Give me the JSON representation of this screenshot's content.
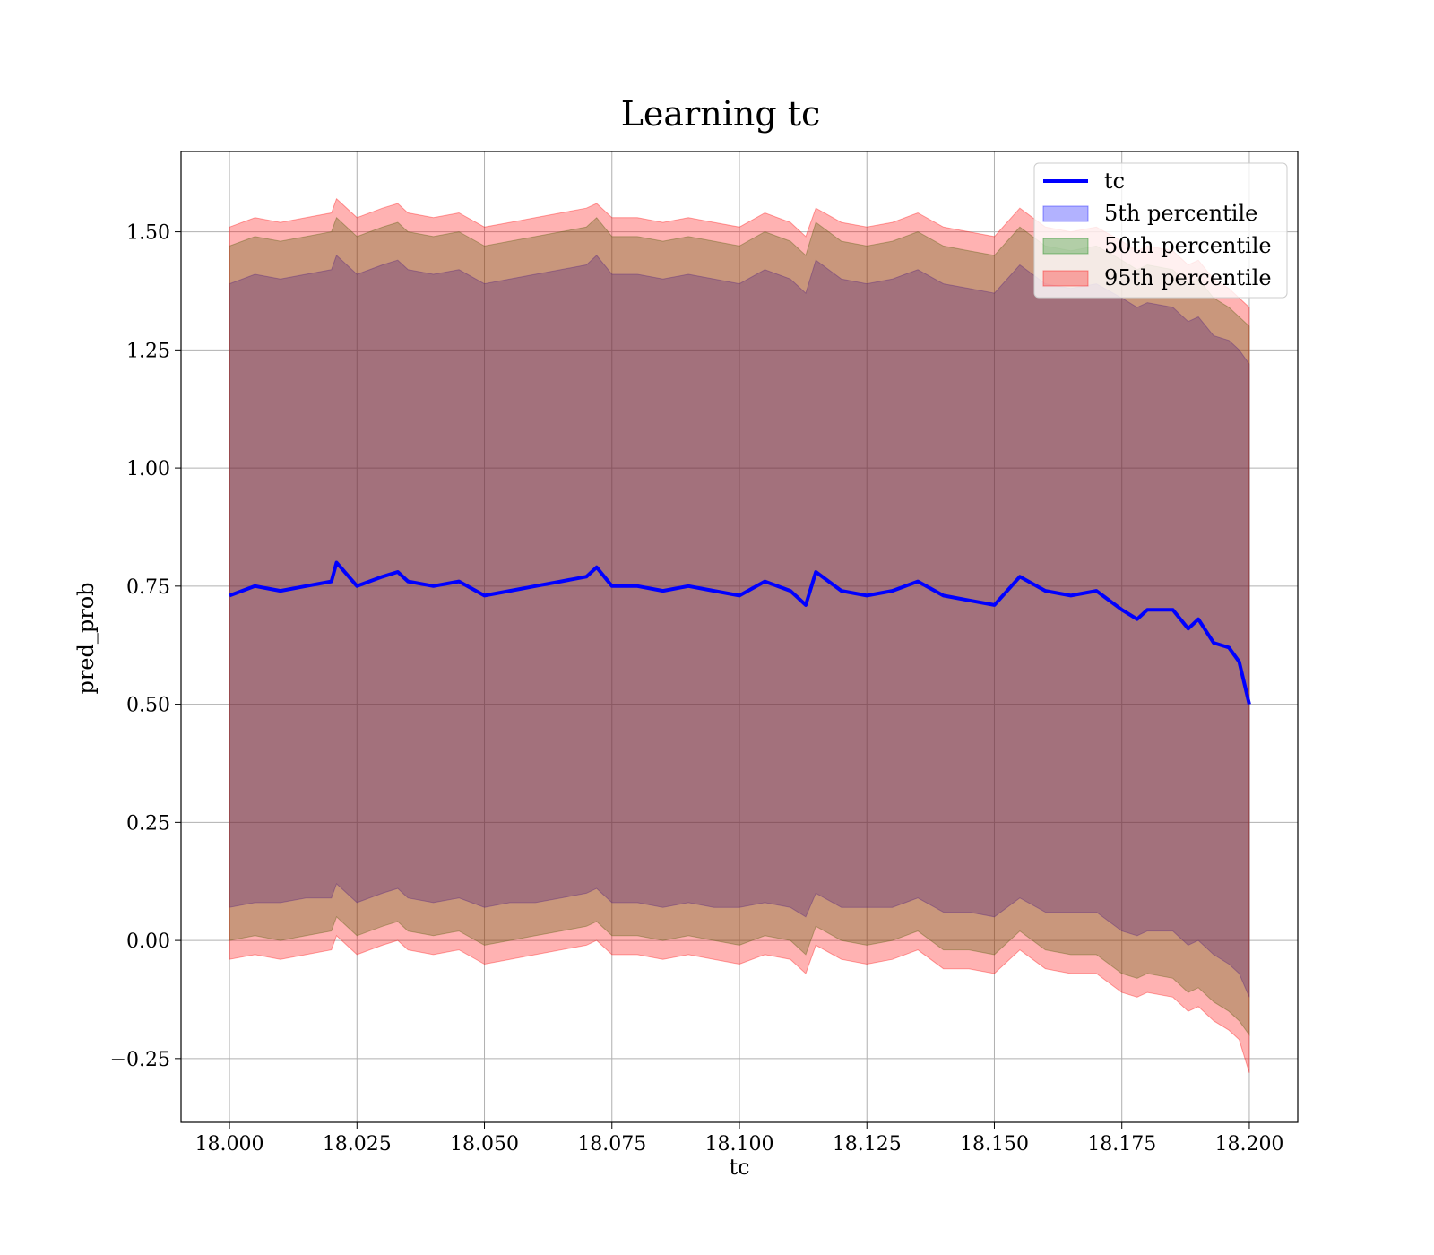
{
  "chart_data": {
    "type": "line",
    "title": "Learning tc",
    "xlabel": "tc",
    "ylabel": "pred_prob",
    "xlim": [
      17.9905,
      18.2095
    ],
    "ylim": [
      -0.385,
      1.67
    ],
    "xticks": [
      18.0,
      18.025,
      18.05,
      18.075,
      18.1,
      18.125,
      18.15,
      18.175,
      18.2
    ],
    "xtick_labels": [
      "18.000",
      "18.025",
      "18.050",
      "18.075",
      "18.100",
      "18.125",
      "18.150",
      "18.175",
      "18.200"
    ],
    "yticks": [
      -0.25,
      0.0,
      0.25,
      0.5,
      0.75,
      1.0,
      1.25,
      1.5
    ],
    "ytick_labels": [
      "−0.25",
      "0.00",
      "0.25",
      "0.50",
      "0.75",
      "1.00",
      "1.25",
      "1.50"
    ],
    "grid": true,
    "legend_position": "top-right",
    "x": [
      18.0,
      18.005,
      18.01,
      18.015,
      18.02,
      18.021,
      18.025,
      18.03,
      18.033,
      18.035,
      18.04,
      18.045,
      18.05,
      18.055,
      18.06,
      18.065,
      18.07,
      18.072,
      18.075,
      18.08,
      18.085,
      18.09,
      18.095,
      18.1,
      18.105,
      18.11,
      18.113,
      18.115,
      18.12,
      18.125,
      18.13,
      18.135,
      18.14,
      18.145,
      18.15,
      18.155,
      18.16,
      18.165,
      18.17,
      18.175,
      18.178,
      18.18,
      18.185,
      18.188,
      18.19,
      18.193,
      18.196,
      18.198,
      18.2
    ],
    "series": [
      {
        "name": "tc",
        "type": "line",
        "color": "#0000ff",
        "values": [
          0.73,
          0.75,
          0.74,
          0.75,
          0.76,
          0.8,
          0.75,
          0.77,
          0.78,
          0.76,
          0.75,
          0.76,
          0.73,
          0.74,
          0.75,
          0.76,
          0.77,
          0.79,
          0.75,
          0.75,
          0.74,
          0.75,
          0.74,
          0.73,
          0.76,
          0.74,
          0.71,
          0.78,
          0.74,
          0.73,
          0.74,
          0.76,
          0.73,
          0.72,
          0.71,
          0.77,
          0.74,
          0.73,
          0.74,
          0.7,
          0.68,
          0.7,
          0.7,
          0.66,
          0.68,
          0.63,
          0.62,
          0.59,
          0.5
        ]
      },
      {
        "name": "5th percentile",
        "type": "band",
        "color": "#0000ff",
        "lower": [
          0.07,
          0.08,
          0.08,
          0.09,
          0.09,
          0.12,
          0.08,
          0.1,
          0.11,
          0.09,
          0.08,
          0.09,
          0.07,
          0.08,
          0.08,
          0.09,
          0.1,
          0.11,
          0.08,
          0.08,
          0.07,
          0.08,
          0.07,
          0.07,
          0.08,
          0.07,
          0.05,
          0.1,
          0.07,
          0.07,
          0.07,
          0.09,
          0.06,
          0.06,
          0.05,
          0.09,
          0.06,
          0.06,
          0.06,
          0.02,
          0.01,
          0.02,
          0.02,
          -0.01,
          0.0,
          -0.03,
          -0.05,
          -0.07,
          -0.12
        ],
        "upper": [
          1.39,
          1.41,
          1.4,
          1.41,
          1.42,
          1.45,
          1.41,
          1.43,
          1.44,
          1.42,
          1.41,
          1.42,
          1.39,
          1.4,
          1.41,
          1.42,
          1.43,
          1.45,
          1.41,
          1.41,
          1.4,
          1.41,
          1.4,
          1.39,
          1.42,
          1.4,
          1.37,
          1.44,
          1.4,
          1.39,
          1.4,
          1.42,
          1.39,
          1.38,
          1.37,
          1.43,
          1.39,
          1.38,
          1.39,
          1.36,
          1.34,
          1.35,
          1.34,
          1.31,
          1.32,
          1.28,
          1.27,
          1.25,
          1.22
        ]
      },
      {
        "name": "50th percentile",
        "type": "band",
        "color": "#008000",
        "lower": [
          0.0,
          0.01,
          0.0,
          0.01,
          0.02,
          0.05,
          0.01,
          0.03,
          0.04,
          0.02,
          0.01,
          0.02,
          -0.01,
          0.0,
          0.01,
          0.02,
          0.03,
          0.04,
          0.01,
          0.01,
          0.0,
          0.01,
          0.0,
          -0.01,
          0.01,
          0.0,
          -0.03,
          0.03,
          0.0,
          -0.01,
          0.0,
          0.02,
          -0.02,
          -0.02,
          -0.03,
          0.02,
          -0.02,
          -0.03,
          -0.03,
          -0.07,
          -0.08,
          -0.07,
          -0.08,
          -0.11,
          -0.1,
          -0.13,
          -0.15,
          -0.17,
          -0.2
        ],
        "upper": [
          1.47,
          1.49,
          1.48,
          1.49,
          1.5,
          1.53,
          1.49,
          1.51,
          1.52,
          1.5,
          1.49,
          1.5,
          1.47,
          1.48,
          1.49,
          1.5,
          1.51,
          1.53,
          1.49,
          1.49,
          1.48,
          1.49,
          1.48,
          1.47,
          1.5,
          1.48,
          1.45,
          1.52,
          1.48,
          1.47,
          1.48,
          1.5,
          1.47,
          1.46,
          1.45,
          1.51,
          1.47,
          1.46,
          1.47,
          1.44,
          1.42,
          1.43,
          1.42,
          1.39,
          1.4,
          1.36,
          1.34,
          1.32,
          1.3
        ]
      },
      {
        "name": "95th percentile",
        "type": "band",
        "color": "#ff0000",
        "lower": [
          -0.04,
          -0.03,
          -0.04,
          -0.03,
          -0.02,
          0.01,
          -0.03,
          -0.01,
          0.0,
          -0.02,
          -0.03,
          -0.02,
          -0.05,
          -0.04,
          -0.03,
          -0.02,
          -0.01,
          0.0,
          -0.03,
          -0.03,
          -0.04,
          -0.03,
          -0.04,
          -0.05,
          -0.03,
          -0.04,
          -0.07,
          -0.01,
          -0.04,
          -0.05,
          -0.04,
          -0.02,
          -0.06,
          -0.06,
          -0.07,
          -0.02,
          -0.06,
          -0.07,
          -0.07,
          -0.11,
          -0.12,
          -0.11,
          -0.12,
          -0.15,
          -0.14,
          -0.17,
          -0.19,
          -0.21,
          -0.28
        ],
        "upper": [
          1.51,
          1.53,
          1.52,
          1.53,
          1.54,
          1.57,
          1.53,
          1.55,
          1.56,
          1.54,
          1.53,
          1.54,
          1.51,
          1.52,
          1.53,
          1.54,
          1.55,
          1.56,
          1.53,
          1.53,
          1.52,
          1.53,
          1.52,
          1.51,
          1.54,
          1.52,
          1.49,
          1.55,
          1.52,
          1.51,
          1.52,
          1.54,
          1.51,
          1.5,
          1.49,
          1.55,
          1.51,
          1.5,
          1.51,
          1.48,
          1.46,
          1.47,
          1.46,
          1.43,
          1.44,
          1.4,
          1.38,
          1.36,
          1.34
        ]
      }
    ]
  }
}
